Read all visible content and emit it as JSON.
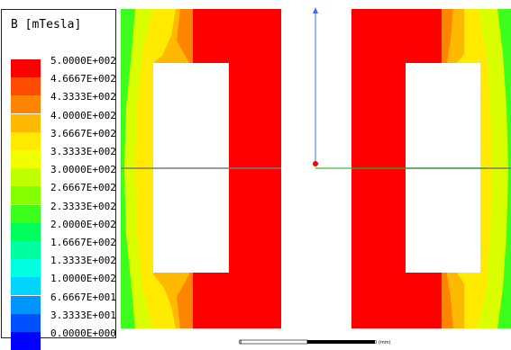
{
  "legend": {
    "title": "B [mTesla]",
    "entries": [
      {
        "label": "5.0000E+002",
        "color": "#ff0000"
      },
      {
        "label": "4.6667E+002",
        "color": "#ff4c00"
      },
      {
        "label": "4.3333E+002",
        "color": "#ff8400"
      },
      {
        "label": "4.0000E+002",
        "color": "#ffb900"
      },
      {
        "label": "3.6667E+002",
        "color": "#ffea00"
      },
      {
        "label": "3.3333E+002",
        "color": "#f0ff00"
      },
      {
        "label": "3.0000E+002",
        "color": "#bfff00"
      },
      {
        "label": "2.6667E+002",
        "color": "#84ff00"
      },
      {
        "label": "2.3333E+002",
        "color": "#3dff1e"
      },
      {
        "label": "2.0000E+002",
        "color": "#00ff5a"
      },
      {
        "label": "1.6667E+002",
        "color": "#00ffa0"
      },
      {
        "label": "1.3333E+002",
        "color": "#00ffe0"
      },
      {
        "label": "1.0000E+002",
        "color": "#00d5ff"
      },
      {
        "label": "6.6667E+001",
        "color": "#0094ff"
      },
      {
        "label": "3.3333E+001",
        "color": "#0050ff"
      },
      {
        "label": "0.0000E+000",
        "color": "#0000ff"
      }
    ]
  },
  "scale_bar": {
    "tick_0": "0",
    "tick_mid": "5",
    "tick_end": "10 (mm)"
  },
  "colors": {
    "red": "#ff0000",
    "orange": "#ff8400",
    "yellow": "#ffea00",
    "yellow_green": "#d9ff00",
    "green": "#3dff1e",
    "axis_blue": "#3a6df0",
    "axis_green": "#1a9e1a",
    "origin_red": "#ff0000"
  }
}
